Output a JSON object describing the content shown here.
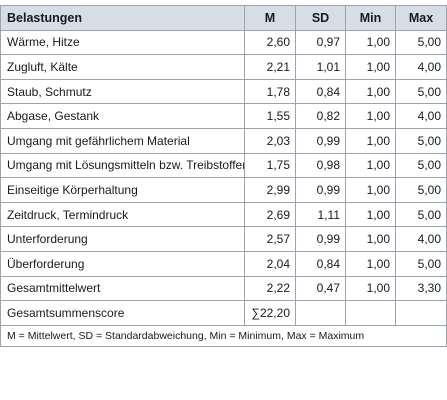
{
  "table": {
    "headers": [
      "Belastungen",
      "M",
      "SD",
      "Min",
      "Max"
    ],
    "rows": [
      [
        "Wärme, Hitze",
        "2,60",
        "0,97",
        "1,00",
        "5,00"
      ],
      [
        "Zugluft, Kälte",
        "2,21",
        "1,01",
        "1,00",
        "4,00"
      ],
      [
        "Staub, Schmutz",
        "1,78",
        "0,84",
        "1,00",
        "5,00"
      ],
      [
        "Abgase, Gestank",
        "1,55",
        "0,82",
        "1,00",
        "4,00"
      ],
      [
        "Umgang mit gefährlichem Material",
        "2,03",
        "0,99",
        "1,00",
        "5,00"
      ],
      [
        "Umgang mit Lösungsmitteln bzw. Treibstoffen",
        "1,75",
        "0,98",
        "1,00",
        "5,00"
      ],
      [
        "Einseitige Körperhaltung",
        "2,99",
        "0,99",
        "1,00",
        "5,00"
      ],
      [
        "Zeitdruck, Termindruck",
        "2,69",
        "1,11",
        "1,00",
        "5,00"
      ],
      [
        "Unterforderung",
        "2,57",
        "0,99",
        "1,00",
        "4,00"
      ],
      [
        "Überforderung",
        "2,04",
        "0,84",
        "1,00",
        "5,00"
      ],
      [
        "Gesamtmittelwert",
        "2,22",
        "0,47",
        "1,00",
        "3,30"
      ],
      [
        "Gesamtsummenscore",
        "∑22,20",
        "",
        "",
        ""
      ]
    ],
    "footnote": "M = Mittelwert, SD = Standardabweichung, Min = Minimum, Max = Maximum"
  },
  "colors": {
    "header_background": "#d6dde6",
    "border": "#9aa3ae"
  }
}
